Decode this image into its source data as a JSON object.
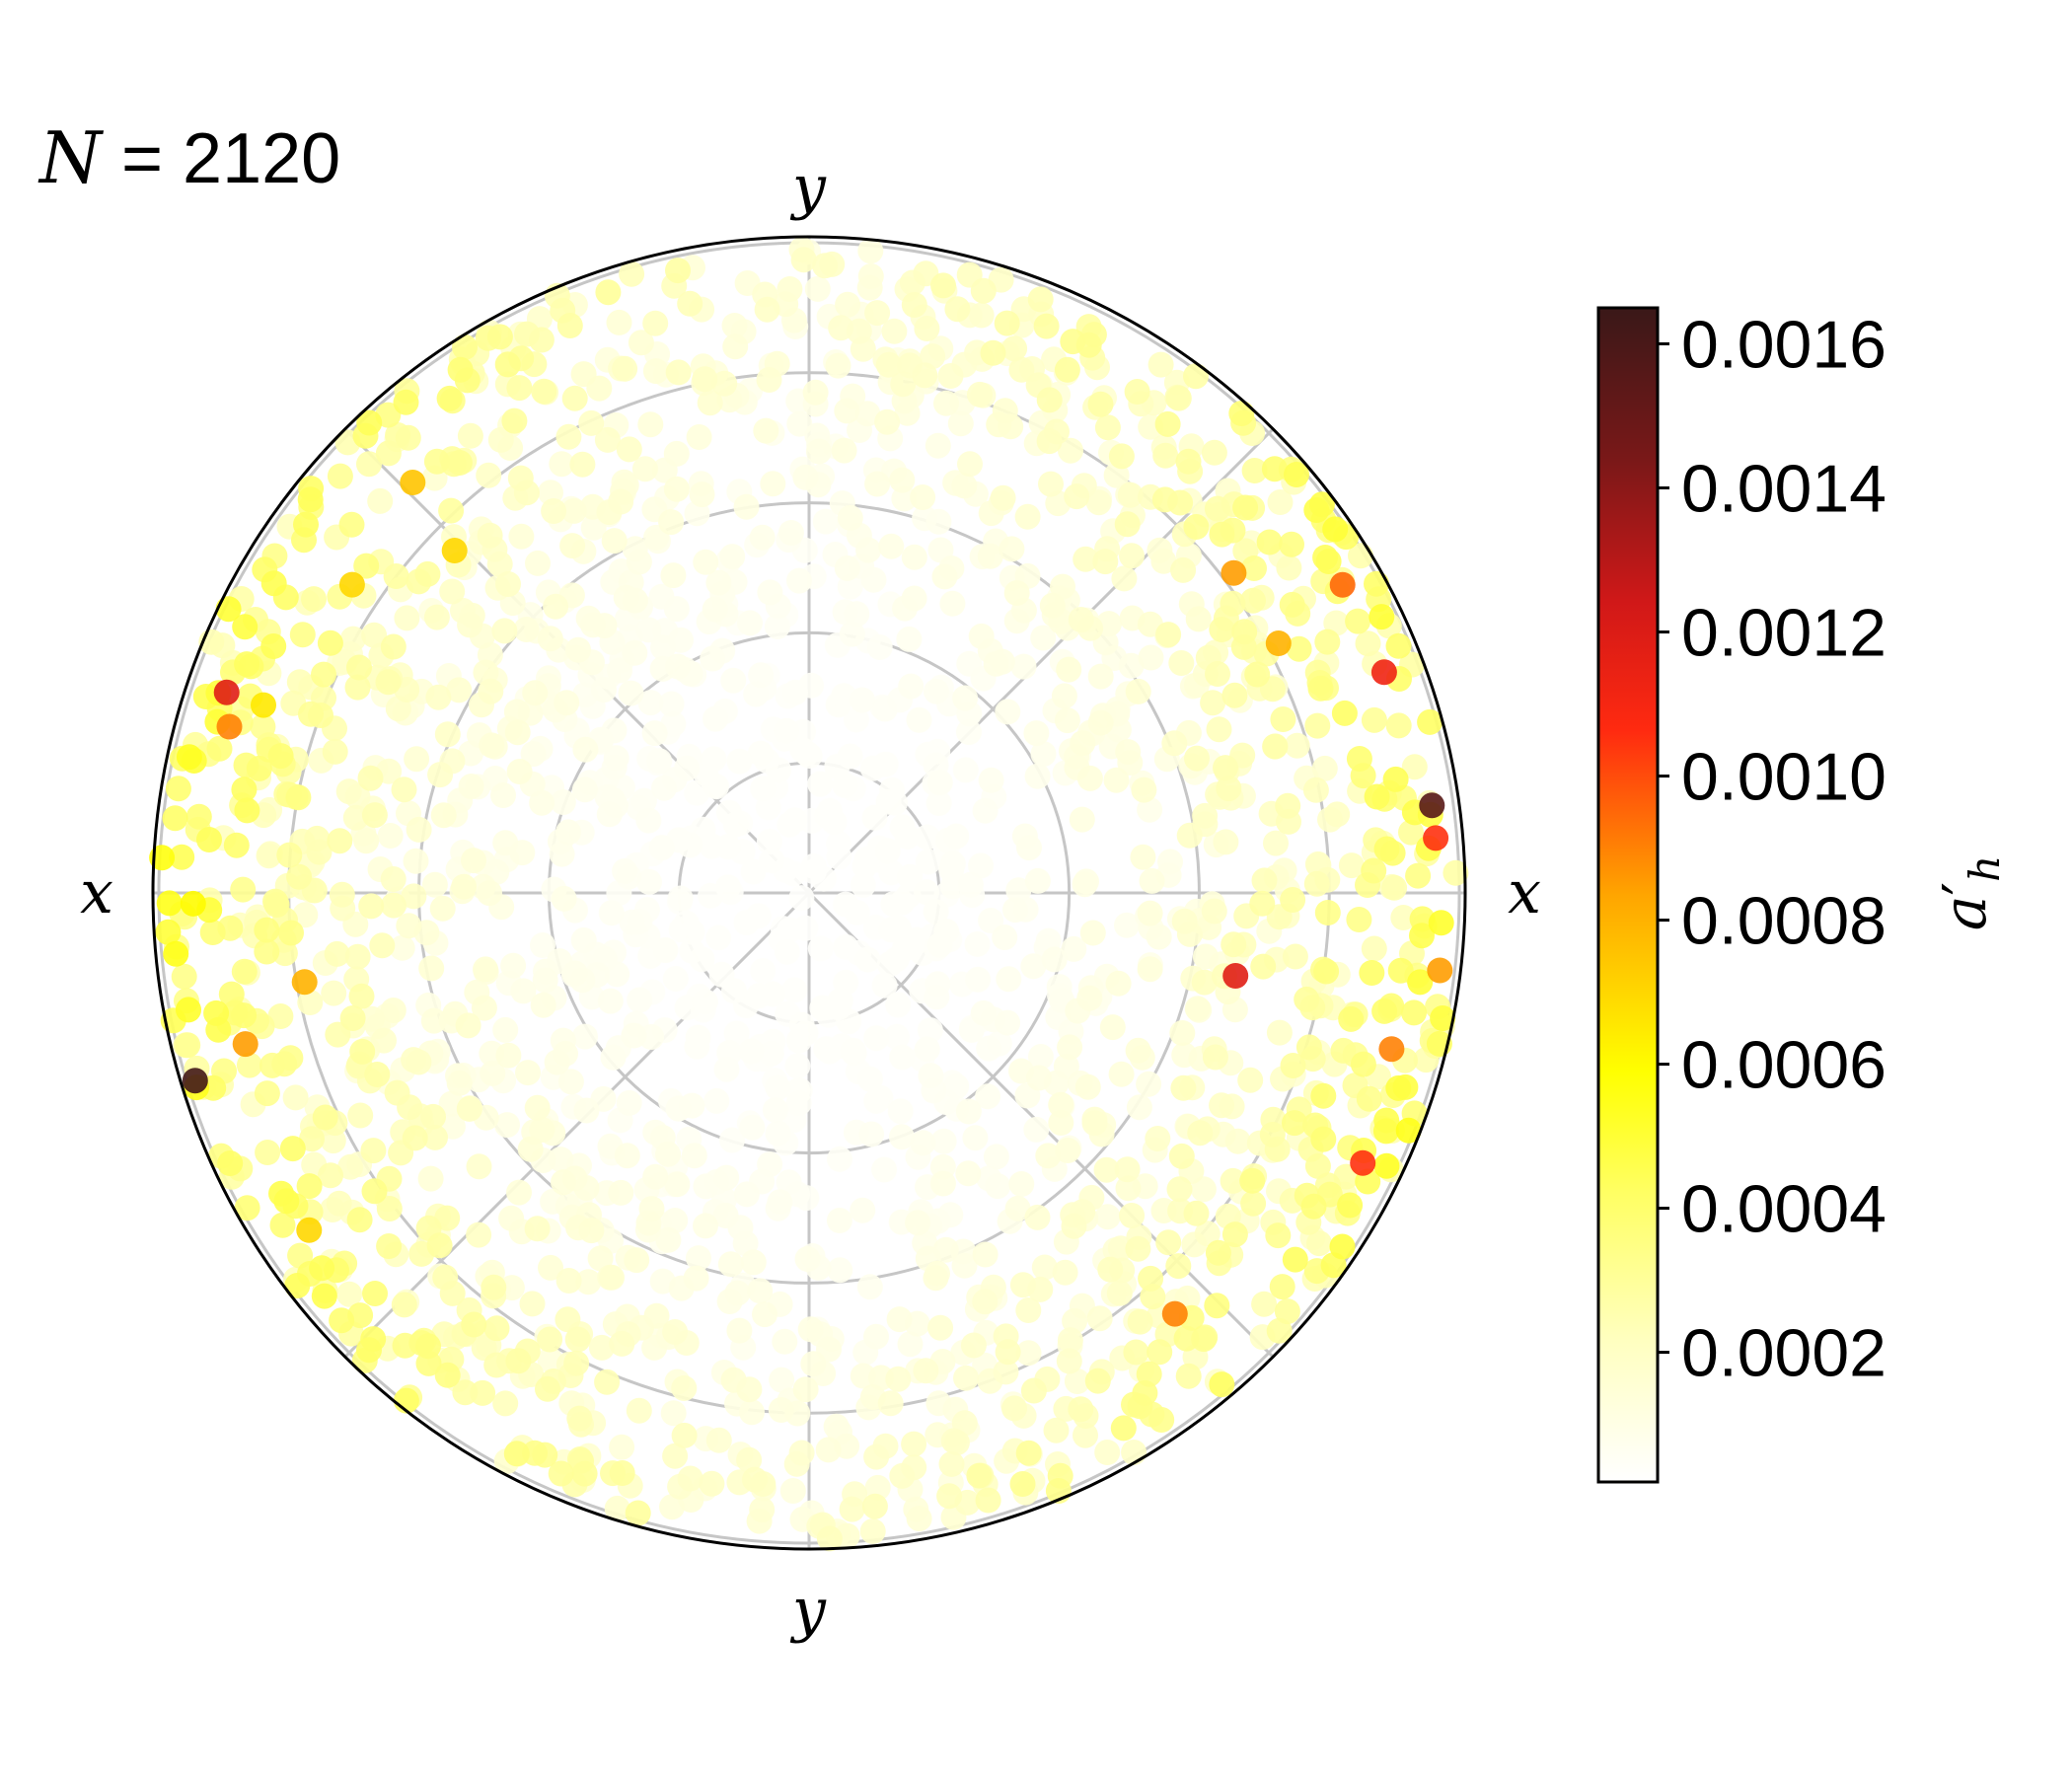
{
  "annotation": {
    "symbol": "N",
    "text": " = 2120"
  },
  "chart_data": {
    "type": "scatter",
    "projection": "polar",
    "point_count": 2120,
    "direction_labels": {
      "top": "y",
      "bottom": "y",
      "left": "x",
      "right": "x"
    },
    "grid": true,
    "ring_count": 5,
    "spoke_count": 8,
    "colorbar": {
      "label": "a'_h",
      "label_main": "a",
      "label_prime": "′",
      "label_sub": "h",
      "colormap": "hot_r",
      "range": [
        2e-05,
        0.00165
      ],
      "ticks": [
        {
          "value": 0.0016,
          "label": "0.0016"
        },
        {
          "value": 0.0014,
          "label": "0.0014"
        },
        {
          "value": 0.0012,
          "label": "0.0012"
        },
        {
          "value": 0.001,
          "label": "0.0010"
        },
        {
          "value": 0.0008,
          "label": "0.0008"
        },
        {
          "value": 0.0006,
          "label": "0.0006"
        },
        {
          "value": 0.0004,
          "label": "0.0004"
        },
        {
          "value": 0.0002,
          "label": "0.0002"
        }
      ],
      "placement": "right"
    },
    "notable_points": [
      {
        "r": 0.97,
        "theta_deg": 8,
        "value": 0.00155
      },
      {
        "r": 0.99,
        "theta_deg": 197,
        "value": 0.00162
      },
      {
        "r": 0.97,
        "theta_deg": 5,
        "value": 0.00105
      },
      {
        "r": 0.95,
        "theta_deg": 21,
        "value": 0.00112
      },
      {
        "r": 0.95,
        "theta_deg": 161,
        "value": 0.00118
      },
      {
        "r": 0.67,
        "theta_deg": 349,
        "value": 0.00118
      },
      {
        "r": 0.82,
        "theta_deg": 37,
        "value": 0.00085
      },
      {
        "r": 0.9,
        "theta_deg": 195,
        "value": 0.00085
      },
      {
        "r": 0.95,
        "theta_deg": 334,
        "value": 0.00105
      },
      {
        "r": 0.93,
        "theta_deg": 164,
        "value": 0.0009
      },
      {
        "r": 0.85,
        "theta_deg": 146,
        "value": 0.0007
      },
      {
        "r": 0.82,
        "theta_deg": 28,
        "value": 0.0008
      },
      {
        "r": 0.86,
        "theta_deg": 311,
        "value": 0.0009
      },
      {
        "r": 0.93,
        "theta_deg": 214,
        "value": 0.0007
      },
      {
        "r": 0.89,
        "theta_deg": 161,
        "value": 0.00065
      },
      {
        "r": 0.95,
        "theta_deg": 181,
        "value": 0.0006
      },
      {
        "r": 0.93,
        "theta_deg": 345,
        "value": 0.0009
      },
      {
        "r": 0.95,
        "theta_deg": 30,
        "value": 0.00095
      },
      {
        "r": 0.98,
        "theta_deg": 353,
        "value": 0.00085
      },
      {
        "r": 0.79,
        "theta_deg": 190,
        "value": 0.0008
      },
      {
        "r": 0.88,
        "theta_deg": 134,
        "value": 0.00075
      },
      {
        "r": 0.76,
        "theta_deg": 136,
        "value": 0.0007
      }
    ]
  }
}
